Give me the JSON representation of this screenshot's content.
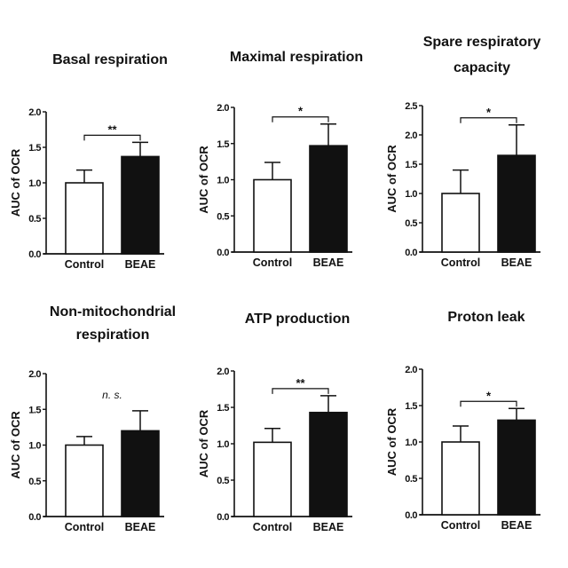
{
  "chart_data": [
    {
      "type": "bar",
      "title": [
        "Basal respiration"
      ],
      "ylabel": "AUC of OCR",
      "categories": [
        "Control",
        "BEAE"
      ],
      "values": [
        1.0,
        1.37
      ],
      "errors": [
        0.18,
        0.2
      ],
      "ylim": [
        0,
        2.0
      ],
      "yticks": [
        "0.0",
        "0.5",
        "1.0",
        "1.5",
        "2.0"
      ],
      "significance": "**",
      "bar_colors": [
        "#ffffff",
        "#111111"
      ]
    },
    {
      "type": "bar",
      "title": [
        "Maximal respiration"
      ],
      "ylabel": "AUC of OCR",
      "categories": [
        "Control",
        "BEAE"
      ],
      "values": [
        1.0,
        1.47
      ],
      "errors": [
        0.24,
        0.3
      ],
      "ylim": [
        0,
        2.0
      ],
      "yticks": [
        "0.0",
        "0.5",
        "1.0",
        "1.5",
        "2.0"
      ],
      "significance": "*",
      "bar_colors": [
        "#ffffff",
        "#111111"
      ]
    },
    {
      "type": "bar",
      "title": [
        "Spare respiratory",
        "capacity"
      ],
      "ylabel": "AUC of OCR",
      "categories": [
        "Control",
        "BEAE"
      ],
      "values": [
        1.0,
        1.65
      ],
      "errors": [
        0.4,
        0.52
      ],
      "ylim": [
        0,
        2.5
      ],
      "yticks": [
        "0.0",
        "0.5",
        "1.0",
        "1.5",
        "2.0",
        "2.5"
      ],
      "significance": "*",
      "bar_colors": [
        "#ffffff",
        "#111111"
      ]
    },
    {
      "type": "bar",
      "title": [
        "Non-mitochondrial",
        "respiration"
      ],
      "ylabel": "AUC of OCR",
      "categories": [
        "Control",
        "BEAE"
      ],
      "values": [
        1.0,
        1.2
      ],
      "errors": [
        0.12,
        0.28
      ],
      "ylim": [
        0,
        2.0
      ],
      "yticks": [
        "0.0",
        "0.5",
        "1.0",
        "1.5",
        "2.0"
      ],
      "significance": "n. s.",
      "bar_colors": [
        "#ffffff",
        "#111111"
      ]
    },
    {
      "type": "bar",
      "title": [
        "ATP production"
      ],
      "ylabel": "AUC of OCR",
      "categories": [
        "Control",
        "BEAE"
      ],
      "values": [
        1.02,
        1.43
      ],
      "errors": [
        0.19,
        0.23
      ],
      "ylim": [
        0,
        2.0
      ],
      "yticks": [
        "0.0",
        "0.5",
        "1.0",
        "1.5",
        "2.0"
      ],
      "significance": "**",
      "bar_colors": [
        "#ffffff",
        "#111111"
      ]
    },
    {
      "type": "bar",
      "title": [
        "Proton leak"
      ],
      "ylabel": "AUC of OCR",
      "categories": [
        "Control",
        "BEAE"
      ],
      "values": [
        1.0,
        1.3
      ],
      "errors": [
        0.22,
        0.16
      ],
      "ylim": [
        0,
        2.0
      ],
      "yticks": [
        "0.0",
        "0.5",
        "1.0",
        "1.5",
        "2.0"
      ],
      "significance": "*",
      "bar_colors": [
        "#ffffff",
        "#111111"
      ]
    }
  ]
}
